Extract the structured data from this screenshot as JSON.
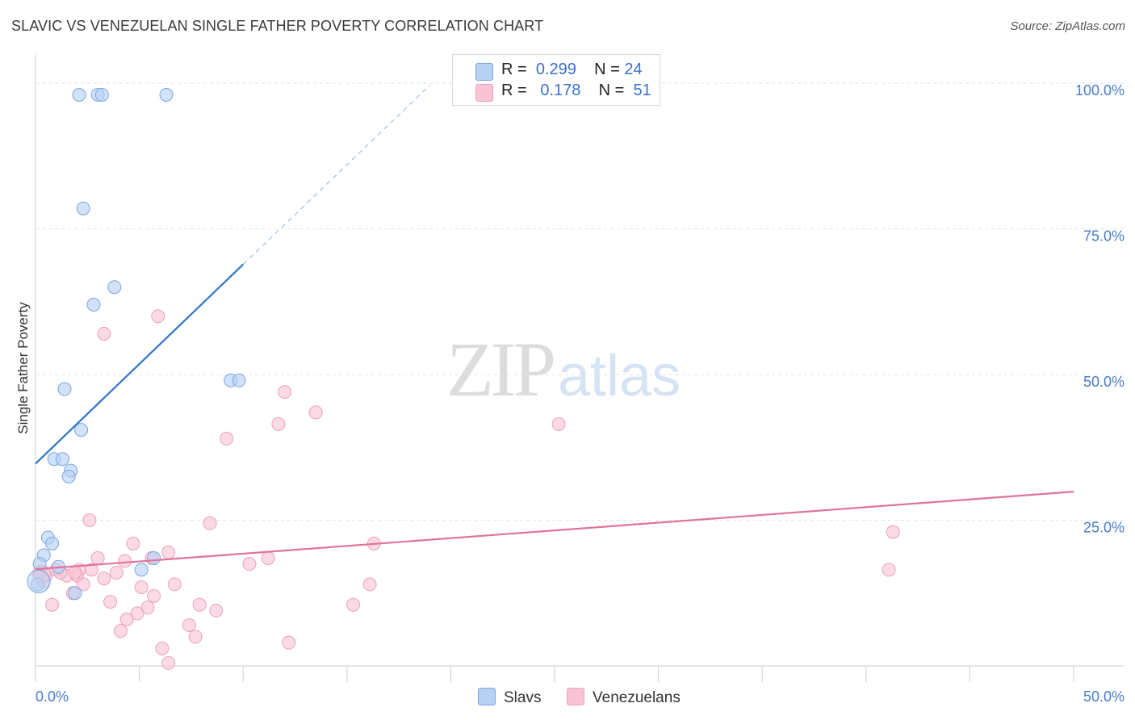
{
  "title": "SLAVIC VS VENEZUELAN SINGLE FATHER POVERTY CORRELATION CHART",
  "source": "Source: ZipAtlas.com",
  "watermark": {
    "zip": "ZIP",
    "atlas": "atlas"
  },
  "legend": {
    "r_label": "R =",
    "n_label": "N =",
    "rows": [
      {
        "r": "0.299",
        "n": "24"
      },
      {
        "r": "0.178",
        "n": "51"
      }
    ]
  },
  "chart_data": {
    "type": "scatter",
    "title": "SLAVIC VS VENEZUELAN SINGLE FATHER POVERTY CORRELATION CHART",
    "xlabel": "",
    "ylabel": "Single Father Poverty",
    "xlim": [
      0,
      50
    ],
    "ylim": [
      0,
      105
    ],
    "x_tick_labels": [
      "0.0%",
      "50.0%"
    ],
    "y_ticks": [
      25,
      50,
      75,
      100
    ],
    "y_tick_labels": [
      "25.0%",
      "50.0%",
      "75.0%",
      "100.0%"
    ],
    "grid": true,
    "colors": {
      "slavs_fill": "#b7d1f3",
      "slavs_stroke": "#7aa6df",
      "slavs_line": "#2f74c8",
      "venez_fill": "#f8c3d4",
      "venez_stroke": "#eba0bb",
      "venez_line": "#e0739d",
      "grid": "#e2e2e2",
      "tick_text": "#4a7cc9"
    },
    "series": [
      {
        "name": "Slavs",
        "r": 0.299,
        "n": 24,
        "trend": {
          "x0": 0,
          "y0": 34.7,
          "x1": 10,
          "y1": 68.9,
          "dash_to_x": 19
        },
        "points": [
          [
            2.1,
            98
          ],
          [
            3.0,
            98
          ],
          [
            3.2,
            98
          ],
          [
            6.3,
            98
          ],
          [
            2.3,
            78.5
          ],
          [
            3.8,
            65
          ],
          [
            2.8,
            62
          ],
          [
            1.4,
            47.5
          ],
          [
            9.4,
            49
          ],
          [
            9.8,
            49
          ],
          [
            2.2,
            40.5
          ],
          [
            0.9,
            35.5
          ],
          [
            1.3,
            35.5
          ],
          [
            1.7,
            33.5
          ],
          [
            1.6,
            32.5
          ],
          [
            0.6,
            22
          ],
          [
            0.8,
            21
          ],
          [
            0.4,
            19
          ],
          [
            0.2,
            17.5
          ],
          [
            1.1,
            17
          ],
          [
            5.1,
            16.5
          ],
          [
            5.7,
            18.5
          ],
          [
            1.9,
            12.5
          ],
          [
            0.1,
            14
          ]
        ]
      },
      {
        "name": "Venezuelans",
        "r": 0.178,
        "n": 51,
        "trend": {
          "x0": 0,
          "y0": 16.6,
          "x1": 50,
          "y1": 29.9
        },
        "points": [
          [
            5.9,
            60
          ],
          [
            3.3,
            57
          ],
          [
            12.0,
            47
          ],
          [
            13.5,
            43.5
          ],
          [
            11.7,
            41.5
          ],
          [
            25.2,
            41.5
          ],
          [
            9.2,
            39
          ],
          [
            2.6,
            25
          ],
          [
            8.4,
            24.5
          ],
          [
            41.3,
            23
          ],
          [
            4.7,
            21
          ],
          [
            16.3,
            21
          ],
          [
            6.4,
            19.5
          ],
          [
            3.0,
            18.5
          ],
          [
            4.3,
            18
          ],
          [
            5.6,
            18.5
          ],
          [
            11.2,
            18.5
          ],
          [
            10.3,
            17.5
          ],
          [
            2.1,
            16.5
          ],
          [
            2.7,
            16.5
          ],
          [
            3.9,
            16
          ],
          [
            1.0,
            16.5
          ],
          [
            1.5,
            15.5
          ],
          [
            2.0,
            15.5
          ],
          [
            1.2,
            16
          ],
          [
            3.3,
            15
          ],
          [
            2.3,
            14
          ],
          [
            6.7,
            14
          ],
          [
            0.5,
            15.5
          ],
          [
            0.2,
            16
          ],
          [
            16.1,
            14
          ],
          [
            5.1,
            13.5
          ],
          [
            41.1,
            16.5
          ],
          [
            1.8,
            12.5
          ],
          [
            5.7,
            12
          ],
          [
            0.8,
            10.5
          ],
          [
            3.6,
            11
          ],
          [
            7.9,
            10.5
          ],
          [
            15.3,
            10.5
          ],
          [
            5.4,
            10
          ],
          [
            8.7,
            9.5
          ],
          [
            4.9,
            9
          ],
          [
            4.4,
            8
          ],
          [
            7.4,
            7
          ],
          [
            4.1,
            6
          ],
          [
            7.7,
            5
          ],
          [
            12.2,
            4
          ],
          [
            6.1,
            3
          ],
          [
            6.4,
            0.5
          ],
          [
            0.4,
            14.5
          ],
          [
            1.9,
            16
          ]
        ]
      }
    ]
  }
}
